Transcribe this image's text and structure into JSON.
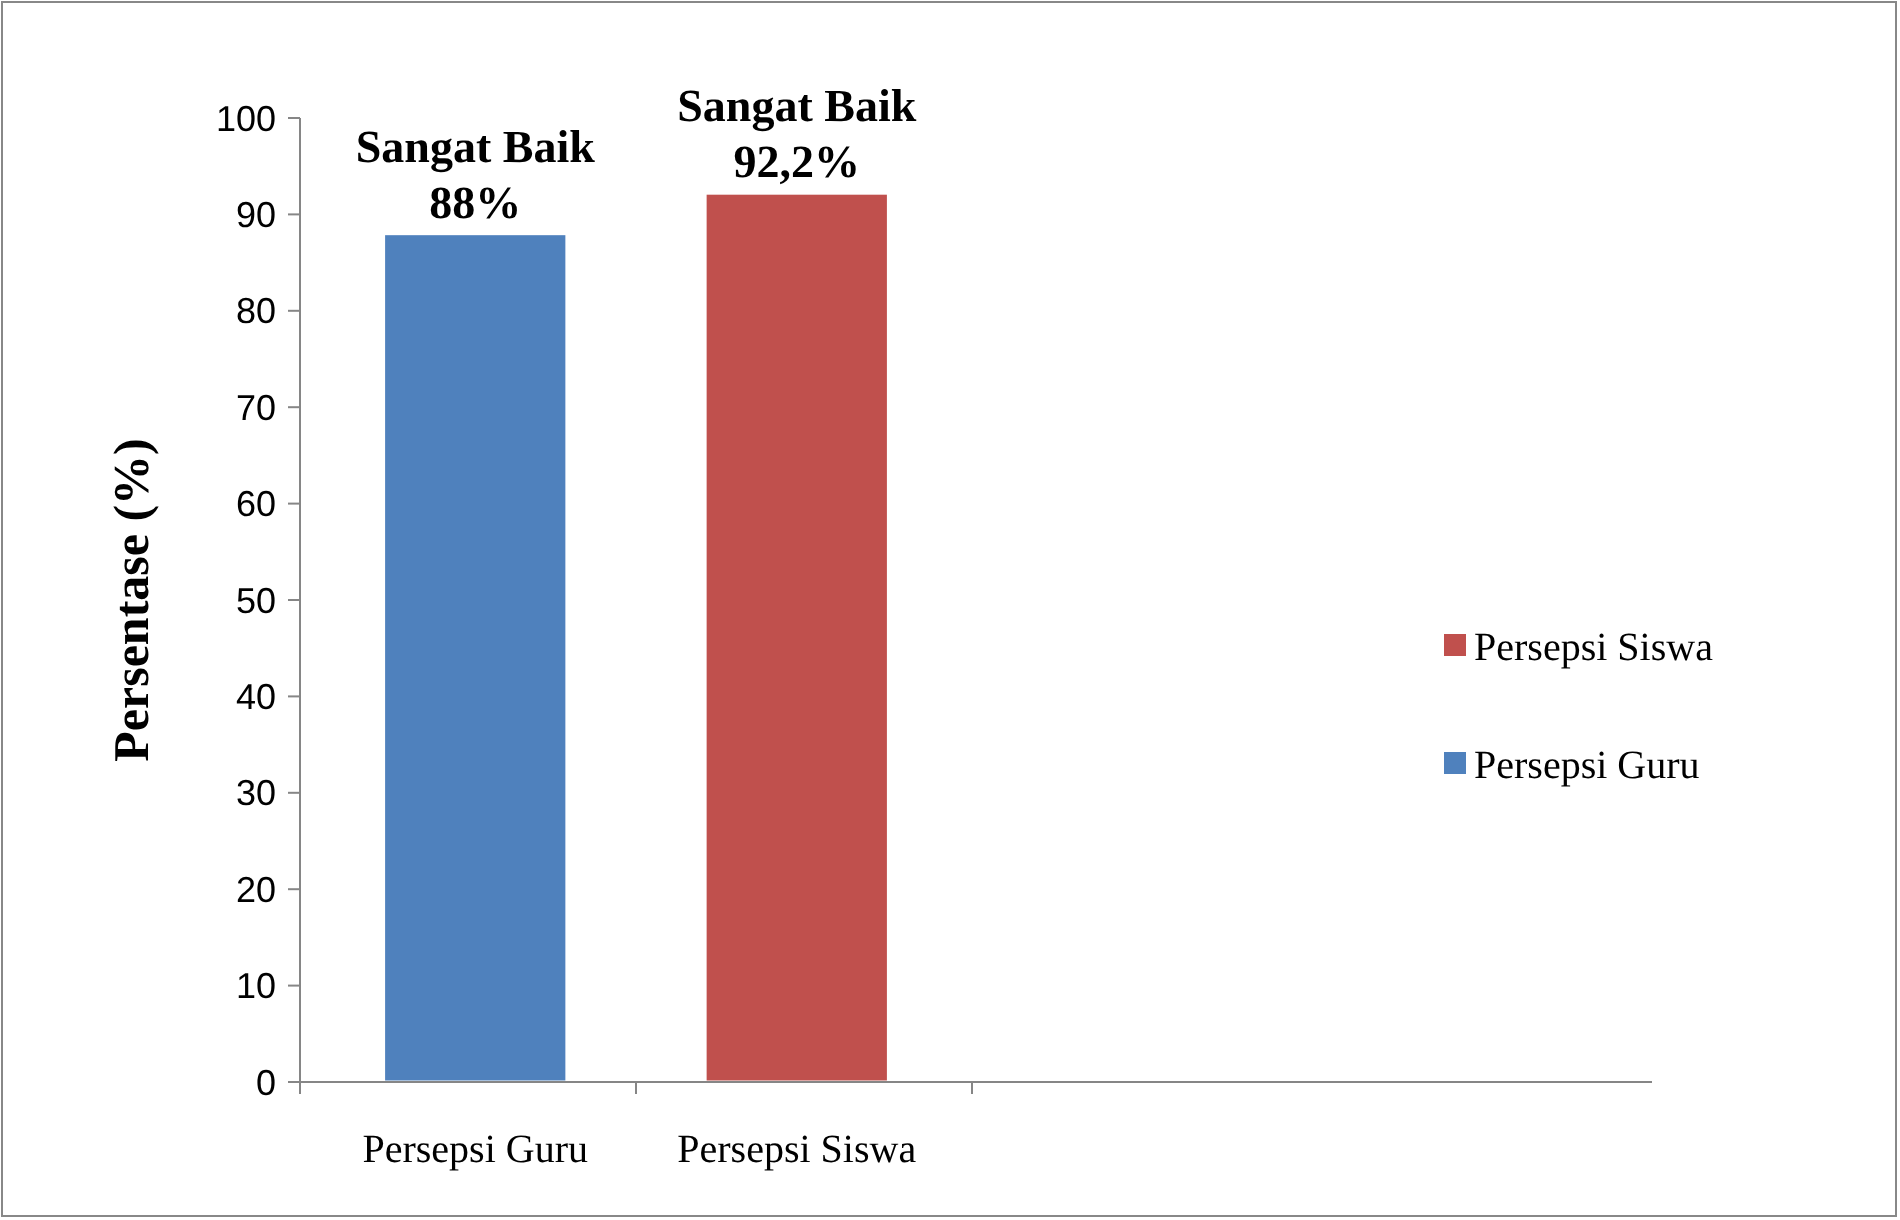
{
  "chart_data": {
    "type": "bar",
    "stacked": true,
    "categories": [
      "Persepsi Guru",
      "Persepsi Siswa"
    ],
    "ylabel": "Persentase (%)",
    "ylim": [
      0,
      100
    ],
    "yticks": [
      0,
      10,
      20,
      30,
      40,
      50,
      60,
      70,
      80,
      90,
      100
    ],
    "legend": "right",
    "grid": false,
    "series": [
      {
        "name": "Persepsi Guru",
        "color": "#4f81bd",
        "values": [
          88,
          null
        ],
        "value_labels": [
          "Sangat Baik\n88%",
          null
        ]
      },
      {
        "name": "Persepsi Siswa",
        "color": "#c0504d",
        "values": [
          null,
          92.2
        ],
        "value_labels": [
          null,
          "Sangat Baik\n92,2%"
        ]
      }
    ]
  }
}
